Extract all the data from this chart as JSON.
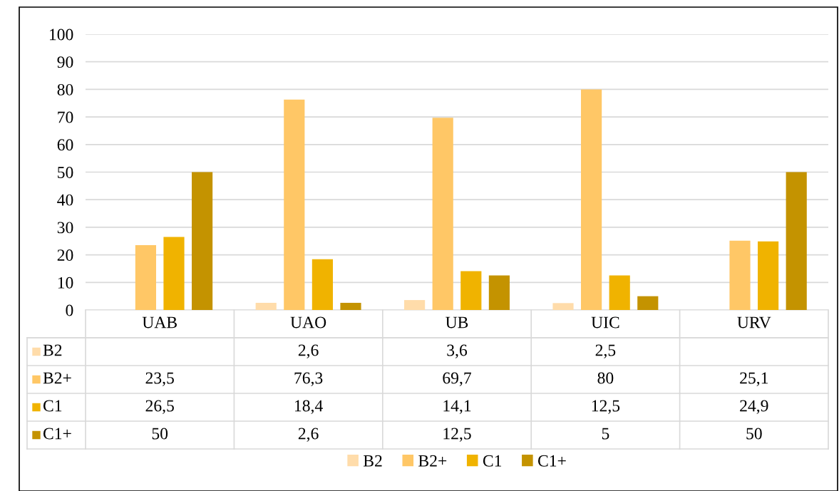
{
  "chart_data": {
    "type": "bar",
    "categories": [
      "UAB",
      "UAO",
      "UB",
      "UIC",
      "URV"
    ],
    "series": [
      {
        "name": "B2",
        "color": "#ffdcaa",
        "values": [
          null,
          2.6,
          3.6,
          2.5,
          null
        ],
        "value_labels": [
          null,
          "2,6",
          "3,6",
          "2,5",
          null
        ]
      },
      {
        "name": "B2+",
        "color": "#ffc766",
        "values": [
          23.5,
          76.3,
          69.7,
          80,
          25.1
        ],
        "value_labels": [
          "23,5",
          "76,3",
          "69,7",
          "80",
          "25,1"
        ]
      },
      {
        "name": "C1",
        "color": "#f0b300",
        "values": [
          26.5,
          18.4,
          14.1,
          12.5,
          24.9
        ],
        "value_labels": [
          "26,5",
          "18,4",
          "14,1",
          "12,5",
          "24,9"
        ]
      },
      {
        "name": "C1+",
        "color": "#c49300",
        "values": [
          50,
          2.6,
          12.5,
          5,
          50
        ],
        "value_labels": [
          "50",
          "2,6",
          "12,5",
          "5",
          "50"
        ]
      }
    ],
    "ylim": [
      0,
      100
    ],
    "yticks": [
      0,
      10,
      20,
      30,
      40,
      50,
      60,
      70,
      80,
      90,
      100
    ],
    "grid": "y",
    "legend": "bottom"
  }
}
